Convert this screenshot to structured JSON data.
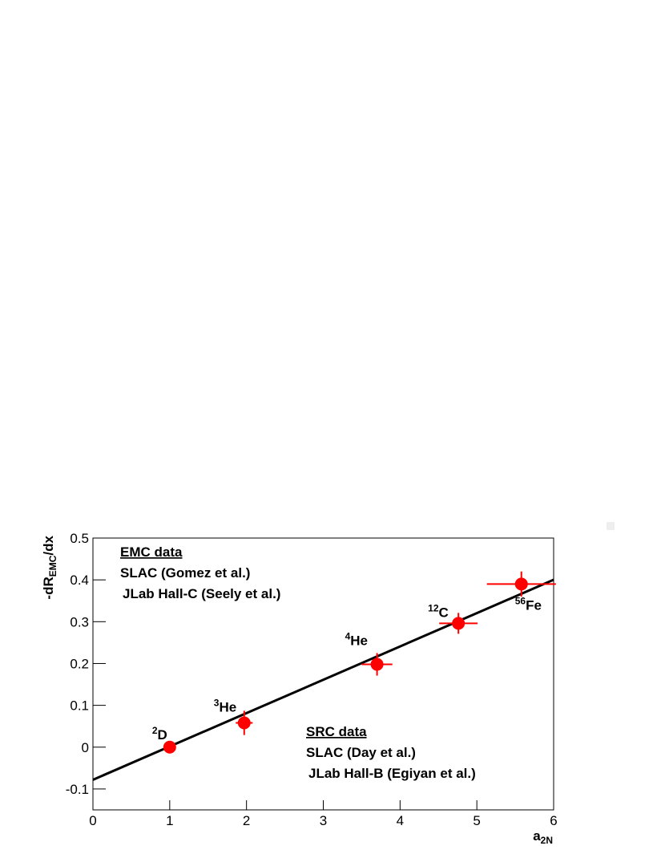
{
  "chart_data": {
    "type": "scatter",
    "x_label": {
      "main": "a",
      "sub": "2N"
    },
    "y_label": {
      "main": "-dR",
      "sub": "EMC",
      "end": "/dx"
    },
    "xlim": [
      0,
      6
    ],
    "ylim": [
      -0.15,
      0.5
    ],
    "xticks": [
      0,
      1,
      2,
      3,
      4,
      5,
      6
    ],
    "yticks": [
      -0.1,
      0,
      0.1,
      0.2,
      0.3,
      0.4,
      0.5
    ],
    "series": [
      {
        "color": "#ff0000",
        "x": [
          1,
          1.97,
          3.7,
          4.76,
          5.58
        ],
        "values": [
          0,
          0.058,
          0.198,
          0.296,
          0.39
        ],
        "x_err": [
          0,
          0.11,
          0.2,
          0.25,
          0.45
        ],
        "y_err": [
          0.005,
          0.029,
          0.027,
          0.025,
          0.03
        ],
        "point_labels": [
          {
            "sup": "2",
            "text": "D"
          },
          {
            "sup": "3",
            "text": "He"
          },
          {
            "sup": "4",
            "text": "He"
          },
          {
            "sup": "12",
            "text": "C"
          },
          {
            "sup": "56",
            "text": "Fe"
          }
        ]
      }
    ],
    "fit": {
      "intercept": -0.078,
      "slope": 0.0797,
      "color": "#000000"
    },
    "annotations": [
      {
        "heading": "EMC data",
        "lines": [
          "SLAC (Gomez et al.)",
          "JLab Hall-C (Seely et al.)"
        ]
      },
      {
        "heading": "SRC data",
        "lines": [
          "SLAC (Day et al.)",
          "JLab Hall-B (Egiyan et al.)"
        ]
      }
    ]
  }
}
